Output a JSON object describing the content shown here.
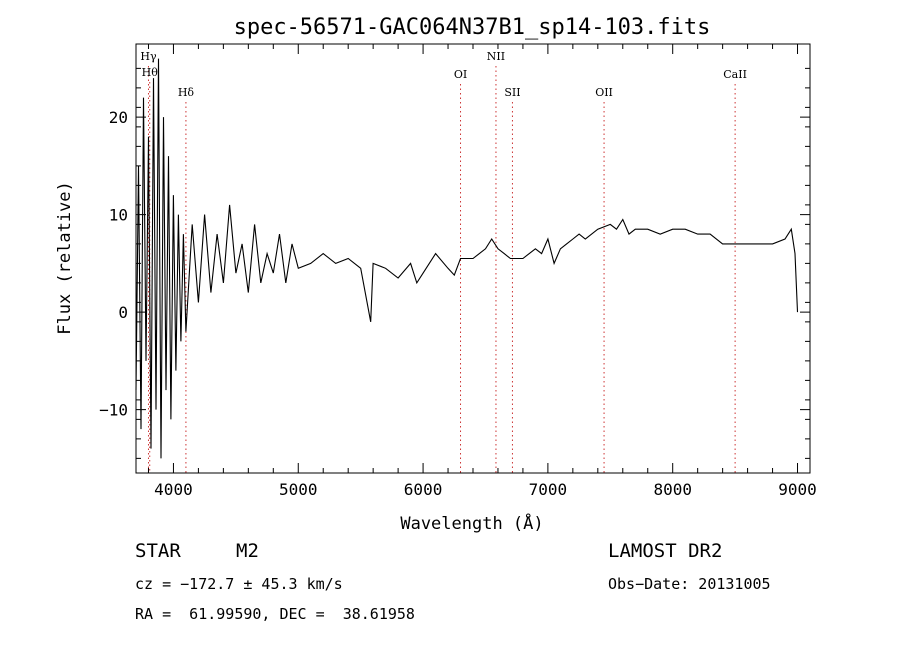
{
  "chart_data": {
    "type": "line",
    "title": "spec-56571-GAC064N37B1_sp14-103.fits",
    "xlabel": "Wavelength (Å)",
    "ylabel": "Flux (relative)",
    "xlim": [
      3700,
      9100
    ],
    "ylim": [
      -16.5,
      27.5
    ],
    "xticks": [
      4000,
      5000,
      6000,
      7000,
      8000,
      9000
    ],
    "yticks": [
      -10,
      0,
      10,
      20
    ],
    "grid": false,
    "series": [
      {
        "x": [
          3700,
          3720,
          3740,
          3760,
          3780,
          3800,
          3820,
          3840,
          3860,
          3880,
          3900,
          3920,
          3940,
          3960,
          3980,
          4000,
          4020,
          4040,
          4060,
          4080,
          4100,
          4150,
          4200,
          4250,
          4300,
          4350,
          4400,
          4450,
          4500,
          4550,
          4600,
          4650,
          4700,
          4750,
          4800,
          4850,
          4900,
          4950,
          5000,
          5100,
          5200,
          5300,
          5400,
          5500,
          5580,
          5600,
          5700,
          5800,
          5900,
          5950,
          6000,
          6100,
          6200,
          6250,
          6300,
          6400,
          6500,
          6550,
          6600,
          6650,
          6700,
          6800,
          6900,
          6950,
          7000,
          7050,
          7100,
          7150,
          7200,
          7250,
          7300,
          7400,
          7500,
          7550,
          7600,
          7650,
          7700,
          7800,
          7900,
          8000,
          8100,
          8200,
          8300,
          8400,
          8500,
          8600,
          8700,
          8800,
          8900,
          8950,
          8980,
          9000
        ],
        "y": [
          -8,
          15,
          -12,
          22,
          -5,
          18,
          -14,
          24,
          -10,
          26,
          -15,
          20,
          -8,
          16,
          -11,
          12,
          -6,
          10,
          -3,
          8,
          -2,
          9,
          1,
          10,
          2,
          8,
          3,
          11,
          4,
          7,
          2,
          9,
          3,
          6,
          4,
          8,
          3,
          7,
          4.5,
          5,
          6,
          5,
          5.5,
          4.5,
          -1,
          5,
          4.5,
          3.5,
          5,
          3,
          4,
          6,
          4.5,
          3.8,
          5.5,
          5.5,
          6.5,
          7.5,
          6.5,
          6,
          5.5,
          5.5,
          6.5,
          6,
          7.5,
          5,
          6.5,
          7,
          7.5,
          8,
          7.5,
          8.5,
          9,
          8.5,
          9.5,
          8,
          8.5,
          8.5,
          8,
          8.5,
          8.5,
          8,
          8,
          7,
          7,
          7,
          7,
          7,
          7.5,
          8.5,
          6,
          0
        ]
      }
    ],
    "lines": [
      {
        "label": "Hγ",
        "x": 3800
      },
      {
        "label": "Hθ",
        "x": 3810
      },
      {
        "label": "Hδ",
        "x": 4100
      },
      {
        "label": "OI",
        "x": 6300
      },
      {
        "label": "NII",
        "x": 6584
      },
      {
        "label": "SII",
        "x": 6716
      },
      {
        "label": "OII",
        "x": 7450
      },
      {
        "label": "CaII",
        "x": 8500
      }
    ]
  },
  "info": {
    "object_type": "STAR",
    "subclass": "M2",
    "survey": "LAMOST DR2",
    "cz": "cz = −172.7 ± 45.3 km/s",
    "obs_date": "Obs−Date: 20131005",
    "coords": "RA =  61.99590, DEC =  38.61958"
  }
}
